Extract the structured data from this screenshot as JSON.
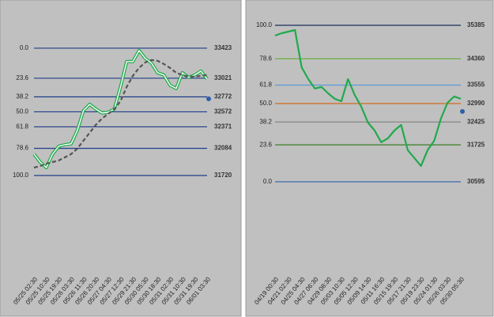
{
  "chart_data": [
    {
      "type": "line",
      "ylim": [
        31530,
        33750
      ],
      "levels": [
        {
          "label": "0.0",
          "price": 33423,
          "color": "#1f3c88"
        },
        {
          "label": "23.6",
          "price": 33021,
          "color": "#1f3c88"
        },
        {
          "label": "38.2",
          "price": 32772,
          "color": "#1f3c88"
        },
        {
          "label": "50.0",
          "price": 32572,
          "color": "#1f3c88"
        },
        {
          "label": "61.8",
          "price": 32371,
          "color": "#1f3c88"
        },
        {
          "label": "78.6",
          "price": 32084,
          "color": "#1f3c88"
        },
        {
          "label": "100.0",
          "price": 31720,
          "color": "#1f3c88"
        }
      ],
      "categories": [
        "05/25 02:30",
        null,
        "05/25 10:30",
        null,
        "05/25 19:30",
        null,
        "05/26 03:30",
        null,
        "05/26 11:30",
        null,
        "05/26 20:30",
        null,
        "05/27 04:30",
        null,
        "05/27 12:30",
        null,
        "05/29 21:30",
        null,
        "05/30 05:30",
        null,
        "05/30 18:30",
        null,
        "05/31 02:30",
        null,
        "05/31 10:30",
        null,
        "05/31 19:30",
        null,
        "06/01 03:30"
      ],
      "series": [
        {
          "color": "#1faa4c",
          "style": "double",
          "values": [
            32006,
            31900,
            31826,
            32006,
            32111,
            32133,
            32143,
            32323,
            32588,
            32672,
            32609,
            32556,
            32566,
            32609,
            32905,
            33244,
            33244,
            33392,
            33286,
            33222,
            33095,
            33064,
            32926,
            32884,
            33095,
            33032,
            33064,
            33117,
            33011
          ]
        },
        {
          "color": "#555555",
          "style": "dashed",
          "values": [
            31826,
            31847,
            31879,
            31900,
            31921,
            31963,
            32006,
            32080,
            32186,
            32291,
            32397,
            32482,
            32545,
            32609,
            32715,
            32905,
            33053,
            33159,
            33233,
            33265,
            33254,
            33212,
            33159,
            33095,
            33064,
            33043,
            33043,
            33053,
            33064
          ]
        }
      ],
      "last_value": 32746,
      "last_color": "#2e5fa8"
    },
    {
      "type": "line",
      "ylim": [
        30230,
        35555
      ],
      "levels": [
        {
          "label": "100.0",
          "price": 35385,
          "color": "#1f2f5c"
        },
        {
          "label": "78.6",
          "price": 34360,
          "color": "#6cae3e"
        },
        {
          "label": "61.8",
          "price": 33555,
          "color": "#5b9bd5"
        },
        {
          "label": "50.0",
          "price": 32990,
          "color": "#d2691e"
        },
        {
          "label": "38.2",
          "price": 32425,
          "color": "#7f7f7f"
        },
        {
          "label": "23.6",
          "price": 31725,
          "color": "#3a7d22"
        },
        {
          "label": "0.0",
          "price": 30595,
          "color": "#2e5fa8"
        }
      ],
      "categories": [
        "04/19 00:30",
        null,
        "04/21 02:30",
        null,
        "04/25 04:30",
        null,
        "04/27 06:30",
        null,
        "04/29 08:30",
        null,
        "05/03 10:30",
        null,
        "05/05 12:30",
        null,
        "05/09 14:30",
        null,
        "05/11 16:30",
        null,
        "05/15 19:30",
        null,
        "05/17 21:30",
        null,
        "05/19 23:30",
        null,
        "05/24 01:30",
        null,
        "05/26 03:30",
        null,
        "05/30 05:30"
      ],
      "series": [
        {
          "color": "#1faa4c",
          "style": "solid",
          "values": [
            35070,
            35143,
            35191,
            35240,
            34103,
            33740,
            33449,
            33498,
            33304,
            33135,
            33062,
            33740,
            33256,
            32893,
            32409,
            32167,
            31805,
            31925,
            32167,
            32337,
            31563,
            31321,
            31079,
            31563,
            31853,
            32530,
            33014,
            33208,
            33135
          ]
        }
      ],
      "last_value": 32748,
      "last_color": "#2e5fa8"
    }
  ]
}
